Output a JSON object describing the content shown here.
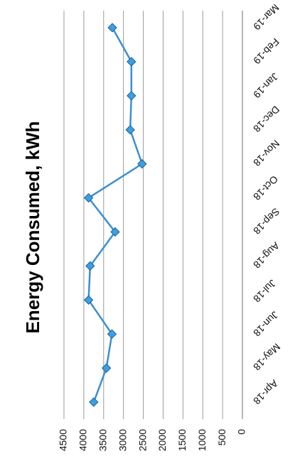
{
  "chart_data": {
    "type": "line",
    "title": "Energy Consumed, kWh",
    "categories": [
      "Apr-18",
      "May-18",
      "Jun-18",
      "Jul-18",
      "Aug-18",
      "Sep-18",
      "Oct-18",
      "Nov-18",
      "Dec-18",
      "Jan-19",
      "Feb-19",
      "Mar-19"
    ],
    "values": [
      3750,
      3430,
      3290,
      3880,
      3840,
      3210,
      3880,
      2530,
      2830,
      2800,
      2800,
      3280
    ],
    "ylim": [
      0,
      4500
    ],
    "yticks": [
      "0",
      "500",
      "1000",
      "1500",
      "2000",
      "2500",
      "3000",
      "3500",
      "4000",
      "4500"
    ],
    "grid": true,
    "legend": "none",
    "colors": {
      "line": "#3b8fd4",
      "marker": "#3aa0e2"
    }
  }
}
